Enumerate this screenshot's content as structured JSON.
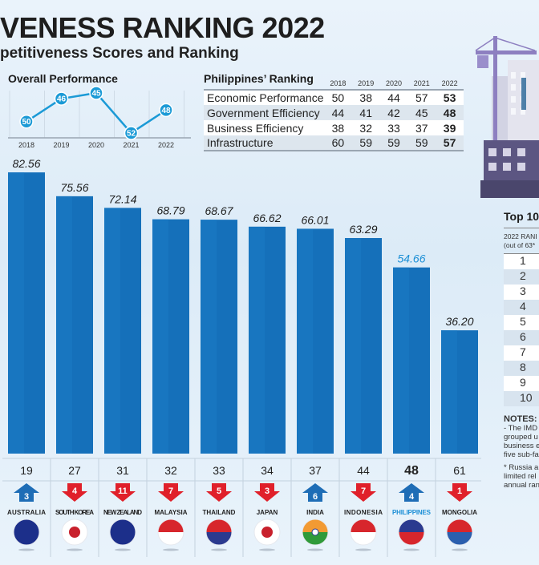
{
  "header": {
    "title": "VENESS RANKING 2022",
    "subtitle": "petitiveness Scores and Ranking"
  },
  "overall_performance": {
    "title": "Overall Performance",
    "years": [
      "2018",
      "2019",
      "2020",
      "2021",
      "2022"
    ],
    "ranks": [
      50,
      46,
      45,
      52,
      48
    ],
    "accent": "#1b9ad6"
  },
  "philippines_ranking": {
    "title": "Philippines’ Ranking",
    "years": [
      "2018",
      "2019",
      "2020",
      "2021",
      "2022"
    ],
    "rows": [
      {
        "factor": "Economic Performance",
        "values": [
          "50",
          "38",
          "44",
          "57",
          "53"
        ]
      },
      {
        "factor": "Government Efficiency",
        "values": [
          "44",
          "41",
          "42",
          "45",
          "48"
        ]
      },
      {
        "factor": "Business Efficiency",
        "values": [
          "38",
          "32",
          "33",
          "37",
          "39"
        ]
      },
      {
        "factor": "Infrastructure",
        "values": [
          "60",
          "59",
          "59",
          "59",
          "57"
        ]
      }
    ]
  },
  "chart_data": {
    "type": "bar",
    "categories": [
      "AUSTRALIA",
      "SOUTH KOREA",
      "NEW ZEALAND",
      "MALAYSIA",
      "THAILAND",
      "JAPAN",
      "INDIA",
      "INDONESIA",
      "PHILIPPINES",
      "MONGOLIA"
    ],
    "values": [
      82.56,
      75.56,
      72.14,
      68.79,
      68.67,
      66.62,
      66.01,
      63.29,
      54.66,
      36.2
    ],
    "value_labels": [
      "82.56",
      "75.56",
      "72.14",
      "68.79",
      "68.67",
      "66.62",
      "66.01",
      "63.29",
      "54.66",
      "36.20"
    ],
    "ranks": [
      "19",
      "27",
      "31",
      "32",
      "33",
      "34",
      "37",
      "44",
      "48",
      "61"
    ],
    "rank_changes": [
      {
        "dir": "up",
        "n": "3"
      },
      {
        "dir": "down",
        "n": "4"
      },
      {
        "dir": "down",
        "n": "11"
      },
      {
        "dir": "down",
        "n": "7"
      },
      {
        "dir": "down",
        "n": "5"
      },
      {
        "dir": "down",
        "n": "3"
      },
      {
        "dir": "up",
        "n": "6"
      },
      {
        "dir": "down",
        "n": "7"
      },
      {
        "dir": "up",
        "n": "4"
      },
      {
        "dir": "down",
        "n": "1"
      }
    ],
    "highlight": "PHILIPPINES",
    "ylim": [
      0,
      85
    ],
    "grid": false,
    "colors": {
      "bar": "#1570ba",
      "highlight_text": "#1b8fd6",
      "up": "#1e6db6",
      "down": "#e0202a"
    }
  },
  "top10": {
    "title": "Top 10",
    "header_line1": "2022 RANI",
    "header_line2": "(out of 63*",
    "ranks": [
      "1",
      "2",
      "3",
      "4",
      "5",
      "6",
      "7",
      "8",
      "9",
      "10"
    ]
  },
  "notes": {
    "title": "NOTES:",
    "lines": [
      "- The IMD",
      "grouped u",
      "business e",
      "five sub-fa"
    ],
    "footnote": [
      "* Russia a",
      "limited rel",
      "annual ran"
    ]
  }
}
